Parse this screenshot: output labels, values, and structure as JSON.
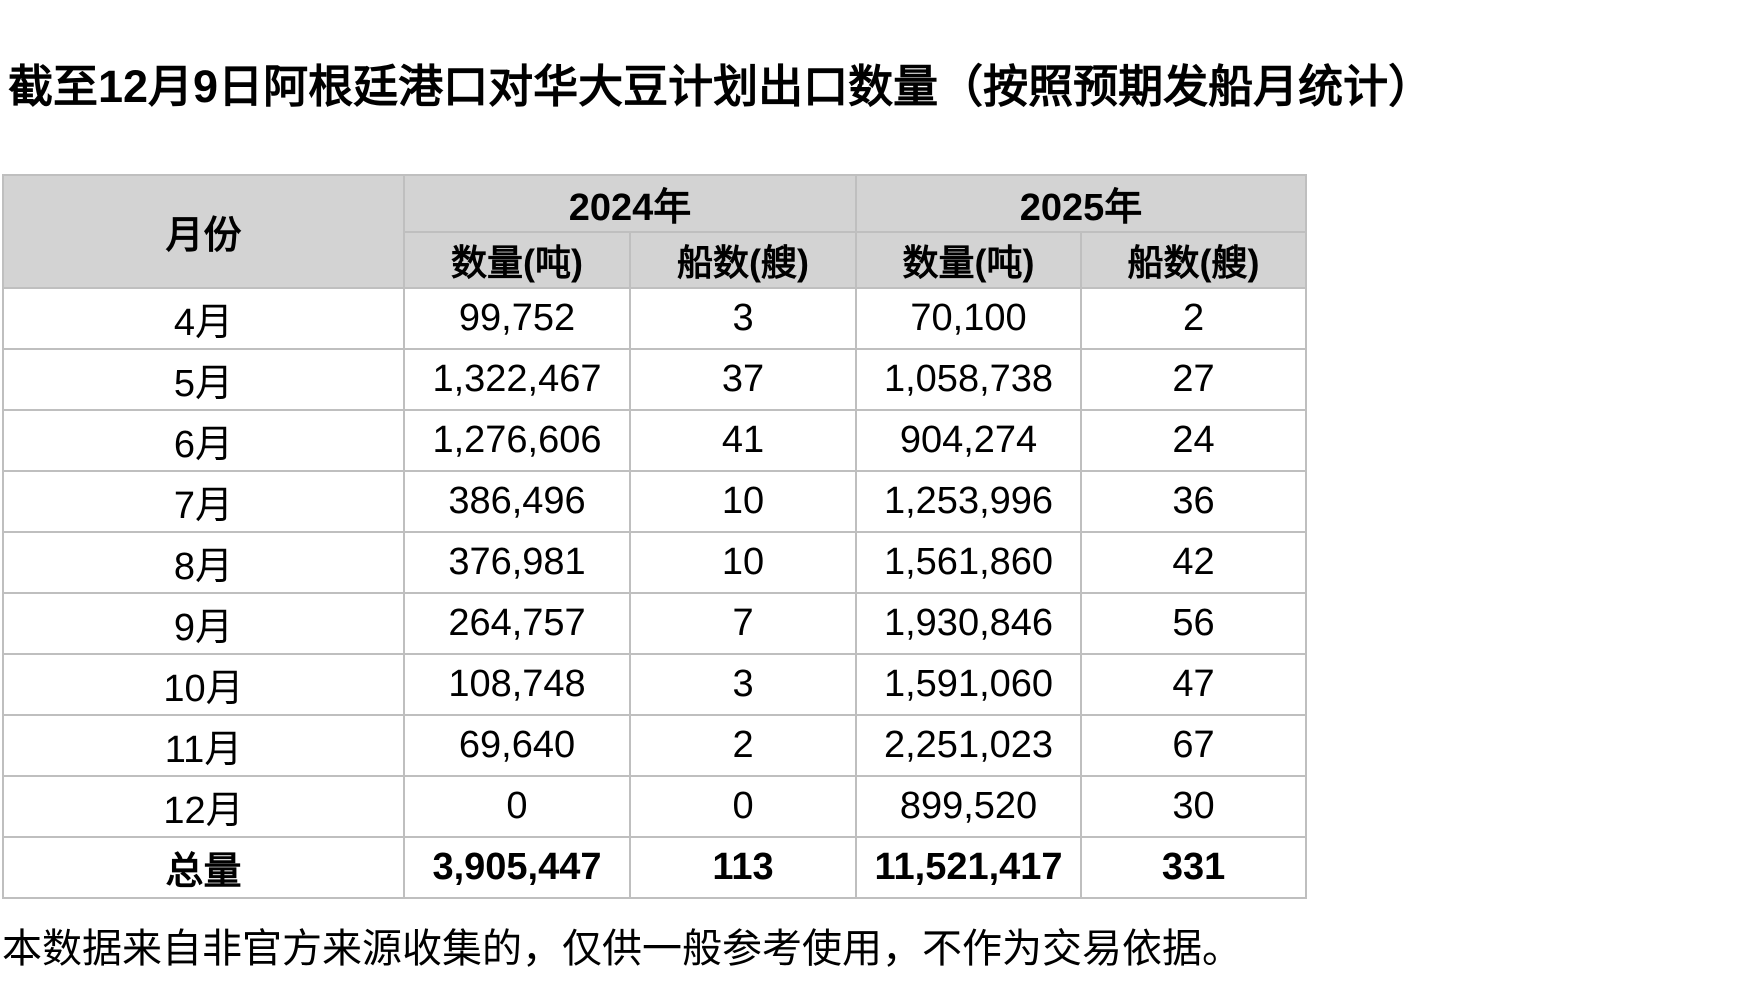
{
  "title": "截至12月9日阿根廷港口对华大豆计划出口数量（按照预期发船月统计）",
  "table": {
    "month_header": "月份",
    "year_2024_header": "2024年",
    "year_2025_header": "2025年",
    "qty_2024_header": "数量(吨)",
    "ships_2024_header": "船数(艘)",
    "qty_2025_header": "数量(吨)",
    "ships_2025_header": "船数(艘)",
    "rows": [
      {
        "month": "4月",
        "qty_2024": "99,752",
        "ships_2024": "3",
        "qty_2025": "70,100",
        "ships_2025": "2"
      },
      {
        "month": "5月",
        "qty_2024": "1,322,467",
        "ships_2024": "37",
        "qty_2025": "1,058,738",
        "ships_2025": "27"
      },
      {
        "month": "6月",
        "qty_2024": "1,276,606",
        "ships_2024": "41",
        "qty_2025": "904,274",
        "ships_2025": "24"
      },
      {
        "month": "7月",
        "qty_2024": "386,496",
        "ships_2024": "10",
        "qty_2025": "1,253,996",
        "ships_2025": "36"
      },
      {
        "month": "8月",
        "qty_2024": "376,981",
        "ships_2024": "10",
        "qty_2025": "1,561,860",
        "ships_2025": "42"
      },
      {
        "month": "9月",
        "qty_2024": "264,757",
        "ships_2024": "7",
        "qty_2025": "1,930,846",
        "ships_2025": "56"
      },
      {
        "month": "10月",
        "qty_2024": "108,748",
        "ships_2024": "3",
        "qty_2025": "1,591,060",
        "ships_2025": "47"
      },
      {
        "month": "11月",
        "qty_2024": "69,640",
        "ships_2024": "2",
        "qty_2025": "2,251,023",
        "ships_2025": "67"
      },
      {
        "month": "12月",
        "qty_2024": "0",
        "ships_2024": "0",
        "qty_2025": "899,520",
        "ships_2025": "30"
      }
    ],
    "total_row": {
      "month": "总量",
      "qty_2024": "3,905,447",
      "ships_2024": "113",
      "qty_2025": "11,521,417",
      "ships_2025": "331"
    }
  },
  "footer": "本数据来自非官方来源收集的，仅供一般参考使用，不作为交易依据。",
  "colors": {
    "header_bg": "#d3d3d3",
    "border": "#bfbfbf",
    "text": "#000000",
    "background": "#ffffff"
  }
}
